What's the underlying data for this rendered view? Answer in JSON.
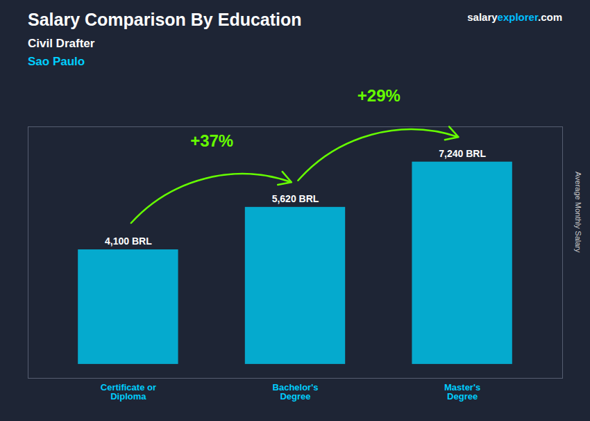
{
  "chart_data": {
    "type": "bar",
    "title": "Salary Comparison By Education",
    "subtitle": [
      "Civil Drafter",
      "Sao Paulo"
    ],
    "website": [
      "salary",
      "explorer",
      ".com"
    ],
    "ylabel": "Average Monthly Salary",
    "categories": [
      "Certificate or\nDiploma",
      "Bachelor's\nDegree",
      "Master's\nDegree"
    ],
    "values": [
      4100,
      5620,
      7240
    ],
    "value_labels": [
      "4,100 BRL",
      "5,620 BRL",
      "7,240 BRL"
    ],
    "annotations": [
      "+37%",
      "+29%"
    ],
    "color": "#00c8f0",
    "ylim": [
      -500,
      8500
    ],
    "data_labels": true,
    "tick_labels": "x",
    "grid": false
  }
}
